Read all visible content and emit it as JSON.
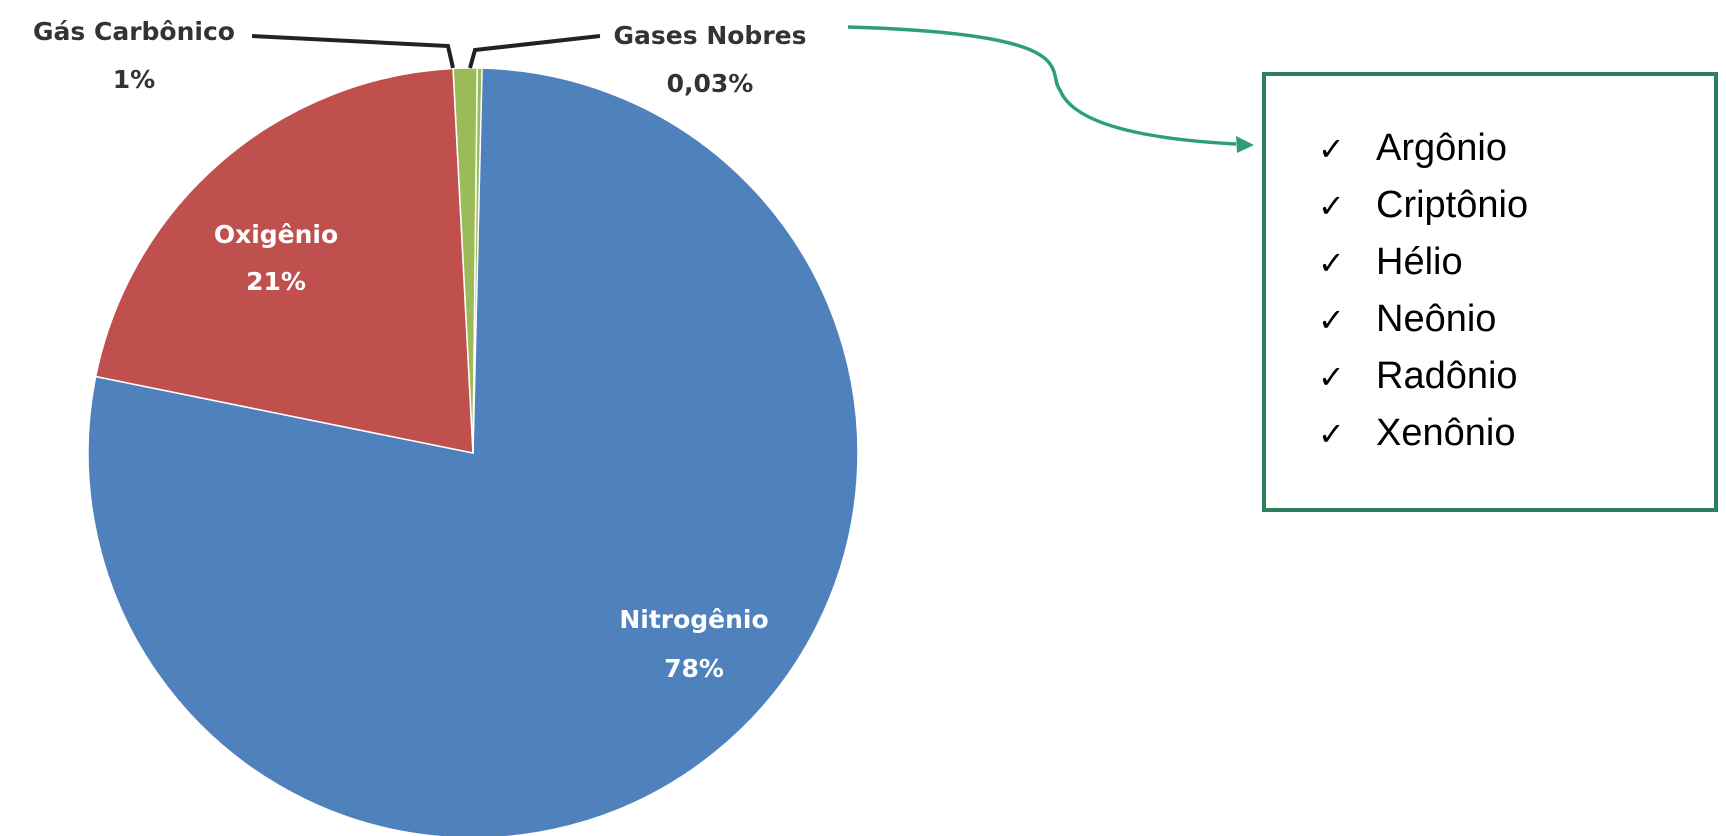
{
  "chart_data": {
    "type": "pie",
    "slices": [
      {
        "label": "Nitrogênio",
        "value_text": "78%",
        "value": 78,
        "color": "#4f81bd"
      },
      {
        "label": "Oxigênio",
        "value_text": "21%",
        "value": 21,
        "color": "#c0504d"
      },
      {
        "label": "Gás Carbônico",
        "value_text": "1%",
        "value": 1,
        "color": "#9bbb59"
      },
      {
        "label": "Gases Nobres",
        "value_text": "0,03%",
        "value": 0.03,
        "color": "#9bbb59"
      }
    ]
  },
  "noble_gases": {
    "border_color": "#2e7d5b",
    "arrow_color": "#2e9e7a",
    "items": [
      {
        "label": "Argônio"
      },
      {
        "label": "Criptônio"
      },
      {
        "label": "Hélio"
      },
      {
        "label": "Neônio"
      },
      {
        "label": "Radônio"
      },
      {
        "label": "Xenônio"
      }
    ]
  }
}
